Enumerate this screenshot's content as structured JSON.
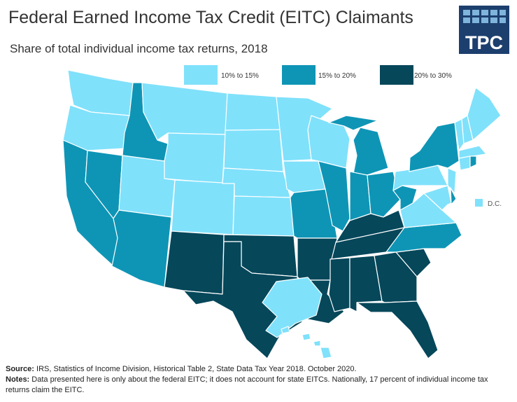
{
  "title": "Federal Earned Income Tax Credit (EITC) Claimants",
  "subtitle": "Share of total individual income tax returns, 2018",
  "logo": "TPC",
  "legend": [
    {
      "label": "10% to 15%",
      "color": "#80e1fb"
    },
    {
      "label": "15% to 20%",
      "color": "#0e95b6"
    },
    {
      "label": "20% to 30%",
      "color": "#06475a"
    }
  ],
  "dc_label": "D.C.",
  "source_label": "Source:",
  "source": "IRS, Statistics of Income Division, Historical Table 2, State Data Tax Year 2018. October 2020.",
  "notes_label": "Notes:",
  "notes": "Data presented here is only about the federal EITC; it does not account for state EITCs. Nationally, 17 percent of individual income tax returns claim the EITC."
}
